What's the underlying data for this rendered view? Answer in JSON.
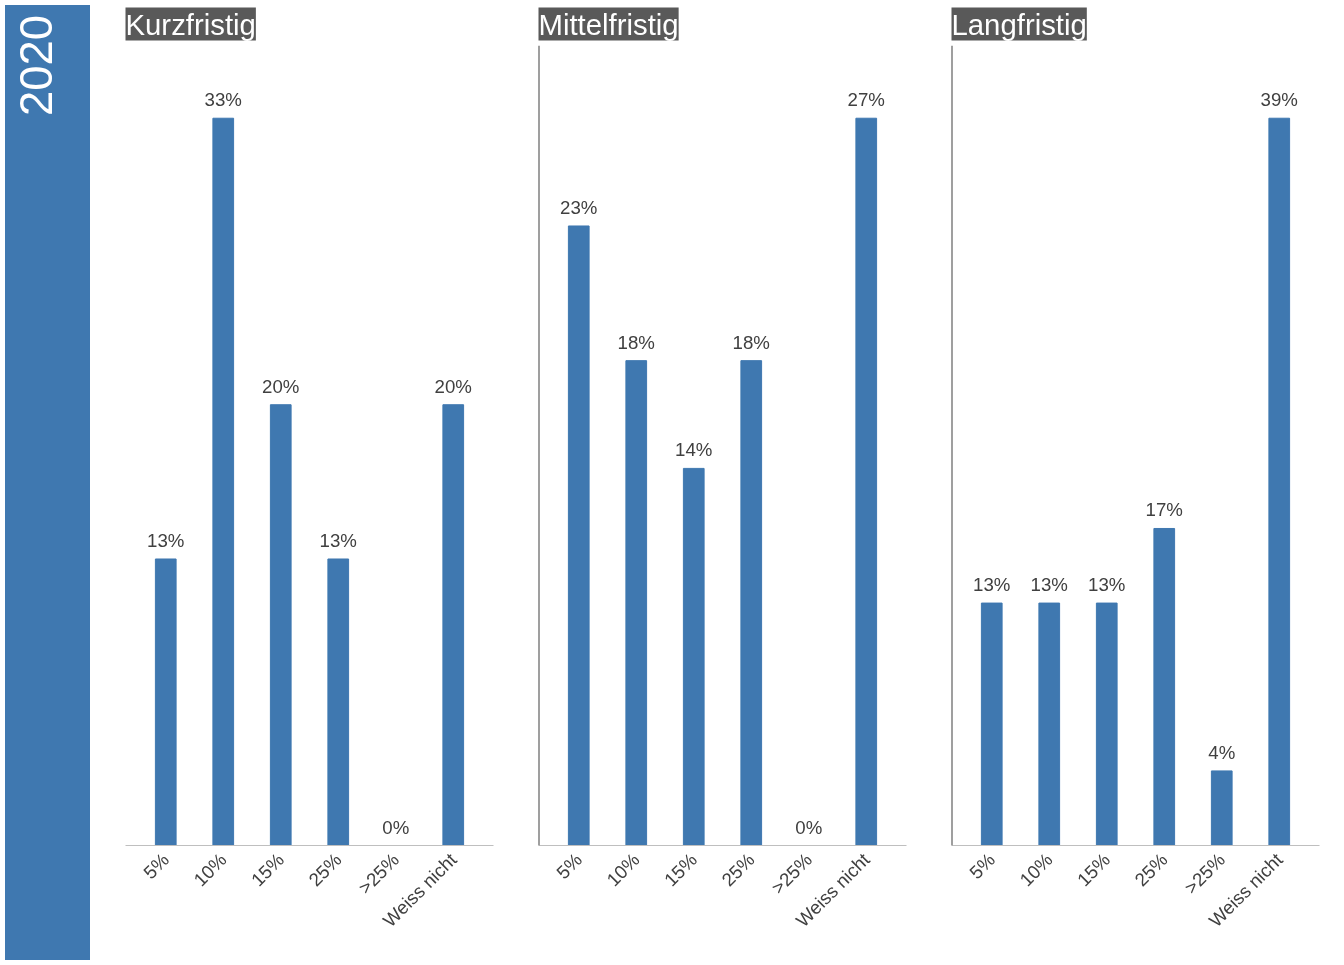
{
  "chart_data": [
    {
      "type": "bar",
      "title": "Kurzfristig",
      "annotations": [
        "2020"
      ],
      "categories": [
        "5%",
        "10%",
        "15%",
        "25%",
        ">25%",
        "Weiss nicht"
      ],
      "color": "#3f78b0",
      "values": [
        13,
        33,
        20,
        13,
        0,
        20
      ],
      "value_labels": [
        "13%",
        "33%",
        "20%",
        "13%",
        "0%",
        "20%"
      ]
    },
    {
      "type": "bar",
      "title": "Mittelfristig",
      "categories": [
        "5%",
        "10%",
        "15%",
        "25%",
        ">25%",
        "Weiss nicht"
      ],
      "color": "#3f78b0",
      "values": [
        23,
        18,
        14,
        18,
        0,
        27
      ],
      "value_labels": [
        "23%",
        "18%",
        "14%",
        "18%",
        "0%",
        "27%"
      ]
    },
    {
      "type": "bar",
      "title": "Langfristig",
      "categories": [
        "5%",
        "10%",
        "15%",
        "25%",
        ">25%",
        "Weiss nicht"
      ],
      "color": "#3f78b0",
      "values": [
        13,
        13,
        13,
        17,
        4,
        39
      ],
      "value_labels": [
        "13%",
        "13%",
        "13%",
        "17%",
        "4%",
        "39%"
      ]
    }
  ]
}
